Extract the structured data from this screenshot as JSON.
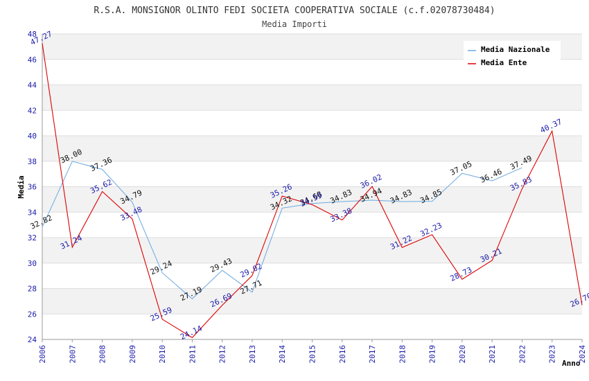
{
  "chart_data": {
    "type": "line",
    "title": "R.S.A. MONSIGNOR OLINTO FEDI SOCIETA COOPERATIVA SOCIALE (c.f.02078730484)",
    "subtitle": "Media Importi",
    "xlabel": "Anno",
    "ylabel": "Media",
    "ylim": [
      24,
      48
    ],
    "yticks": [
      24,
      26,
      28,
      30,
      32,
      34,
      36,
      38,
      40,
      42,
      44,
      46,
      48
    ],
    "x": [
      2006,
      2007,
      2008,
      2009,
      2010,
      2011,
      2012,
      2013,
      2014,
      2015,
      2016,
      2017,
      2018,
      2019,
      2020,
      2021,
      2022,
      2023,
      2024
    ],
    "grid": true,
    "legend": "top-right",
    "series": [
      {
        "name": "Media Nazionale",
        "color": "#6aa8e0",
        "x": [
          2006,
          2007,
          2008,
          2009,
          2010,
          2011,
          2012,
          2013,
          2014,
          2015,
          2016,
          2017,
          2018,
          2019,
          2020,
          2021,
          2022
        ],
        "values": [
          32.82,
          38.0,
          37.36,
          34.79,
          29.24,
          27.19,
          29.43,
          27.71,
          34.32,
          34.68,
          34.83,
          34.94,
          34.83,
          34.85,
          37.05,
          36.46,
          37.49
        ],
        "labels": [
          "32.82",
          "38.00",
          "37.36",
          "34.79",
          "29.24",
          "27.19",
          "29.43",
          "27.71",
          "34.32",
          "34.68",
          "34.83",
          "34.94",
          "34.83",
          "34.85",
          "37.05",
          "36.46",
          "37.49"
        ]
      },
      {
        "name": "Media Ente",
        "color": "#dd0000",
        "x": [
          2006,
          2007,
          2008,
          2009,
          2010,
          2011,
          2012,
          2013,
          2014,
          2015,
          2016,
          2017,
          2018,
          2019,
          2020,
          2021,
          2022,
          2023,
          2024
        ],
        "values": [
          47.27,
          31.24,
          35.62,
          33.48,
          25.59,
          24.14,
          26.69,
          29.02,
          35.26,
          34.59,
          33.38,
          36.02,
          31.22,
          32.23,
          28.73,
          30.21,
          35.83,
          40.37,
          26.7
        ],
        "labels": [
          "47.27",
          "31.24",
          "35.62",
          "33.48",
          "25.59",
          "24.14",
          "26.69",
          "29.02",
          "35.26",
          "34.59",
          "33.38",
          "36.02",
          "31.22",
          "32.23",
          "28.73",
          "30.21",
          "35.83",
          "40.37",
          "26.70"
        ]
      }
    ]
  }
}
